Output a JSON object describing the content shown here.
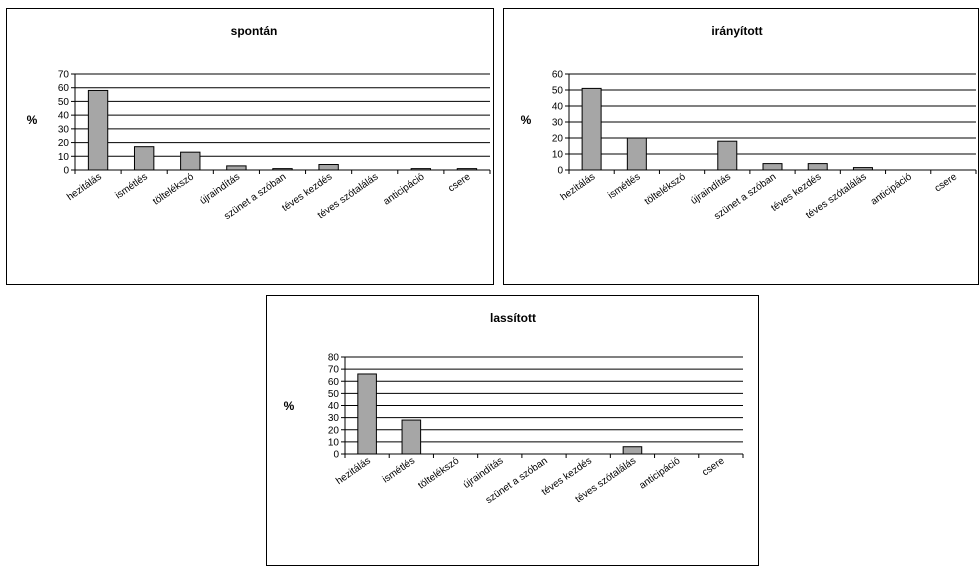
{
  "chart_data": [
    {
      "type": "bar",
      "title": "spontán",
      "ylabel": "%",
      "xlabel": "",
      "ylim": [
        0,
        70
      ],
      "yticks": [
        0,
        10,
        20,
        30,
        40,
        50,
        60,
        70
      ],
      "grid": true,
      "categories": [
        "hezitálás",
        "ismétlés",
        "töltelékszó",
        "újraindítás",
        "szünet a szóban",
        "téves kezdés",
        "téves szótalálás",
        "anticipáció",
        "csere"
      ],
      "values": [
        58,
        17,
        13,
        3,
        1,
        4,
        0,
        1,
        1
      ],
      "color": "#a6a6a6"
    },
    {
      "type": "bar",
      "title": "irányított",
      "ylabel": "%",
      "xlabel": "",
      "ylim": [
        0,
        60
      ],
      "yticks": [
        0,
        10,
        20,
        30,
        40,
        50,
        60
      ],
      "grid": true,
      "categories": [
        "hezitálás",
        "ismétlés",
        "töltelékszó",
        "újraindítás",
        "szünet a szóban",
        "téves kezdés",
        "téves szótalálás",
        "anticipáció",
        "csere"
      ],
      "values": [
        51,
        20,
        0,
        18,
        4,
        4,
        1.5,
        0,
        0
      ],
      "color": "#a6a6a6"
    },
    {
      "type": "bar",
      "title": "lassított",
      "ylabel": "%",
      "xlabel": "",
      "ylim": [
        0,
        80
      ],
      "yticks": [
        0,
        10,
        20,
        30,
        40,
        50,
        60,
        70,
        80
      ],
      "grid": true,
      "categories": [
        "hezitálás",
        "ismétlés",
        "töltelékszó",
        "újraindítás",
        "szünet a szóban",
        "téves kezdés",
        "téves szótalálás",
        "anticipáció",
        "csere"
      ],
      "values": [
        66,
        28,
        0,
        0,
        0,
        0,
        6,
        0,
        0
      ],
      "color": "#a6a6a6"
    }
  ]
}
